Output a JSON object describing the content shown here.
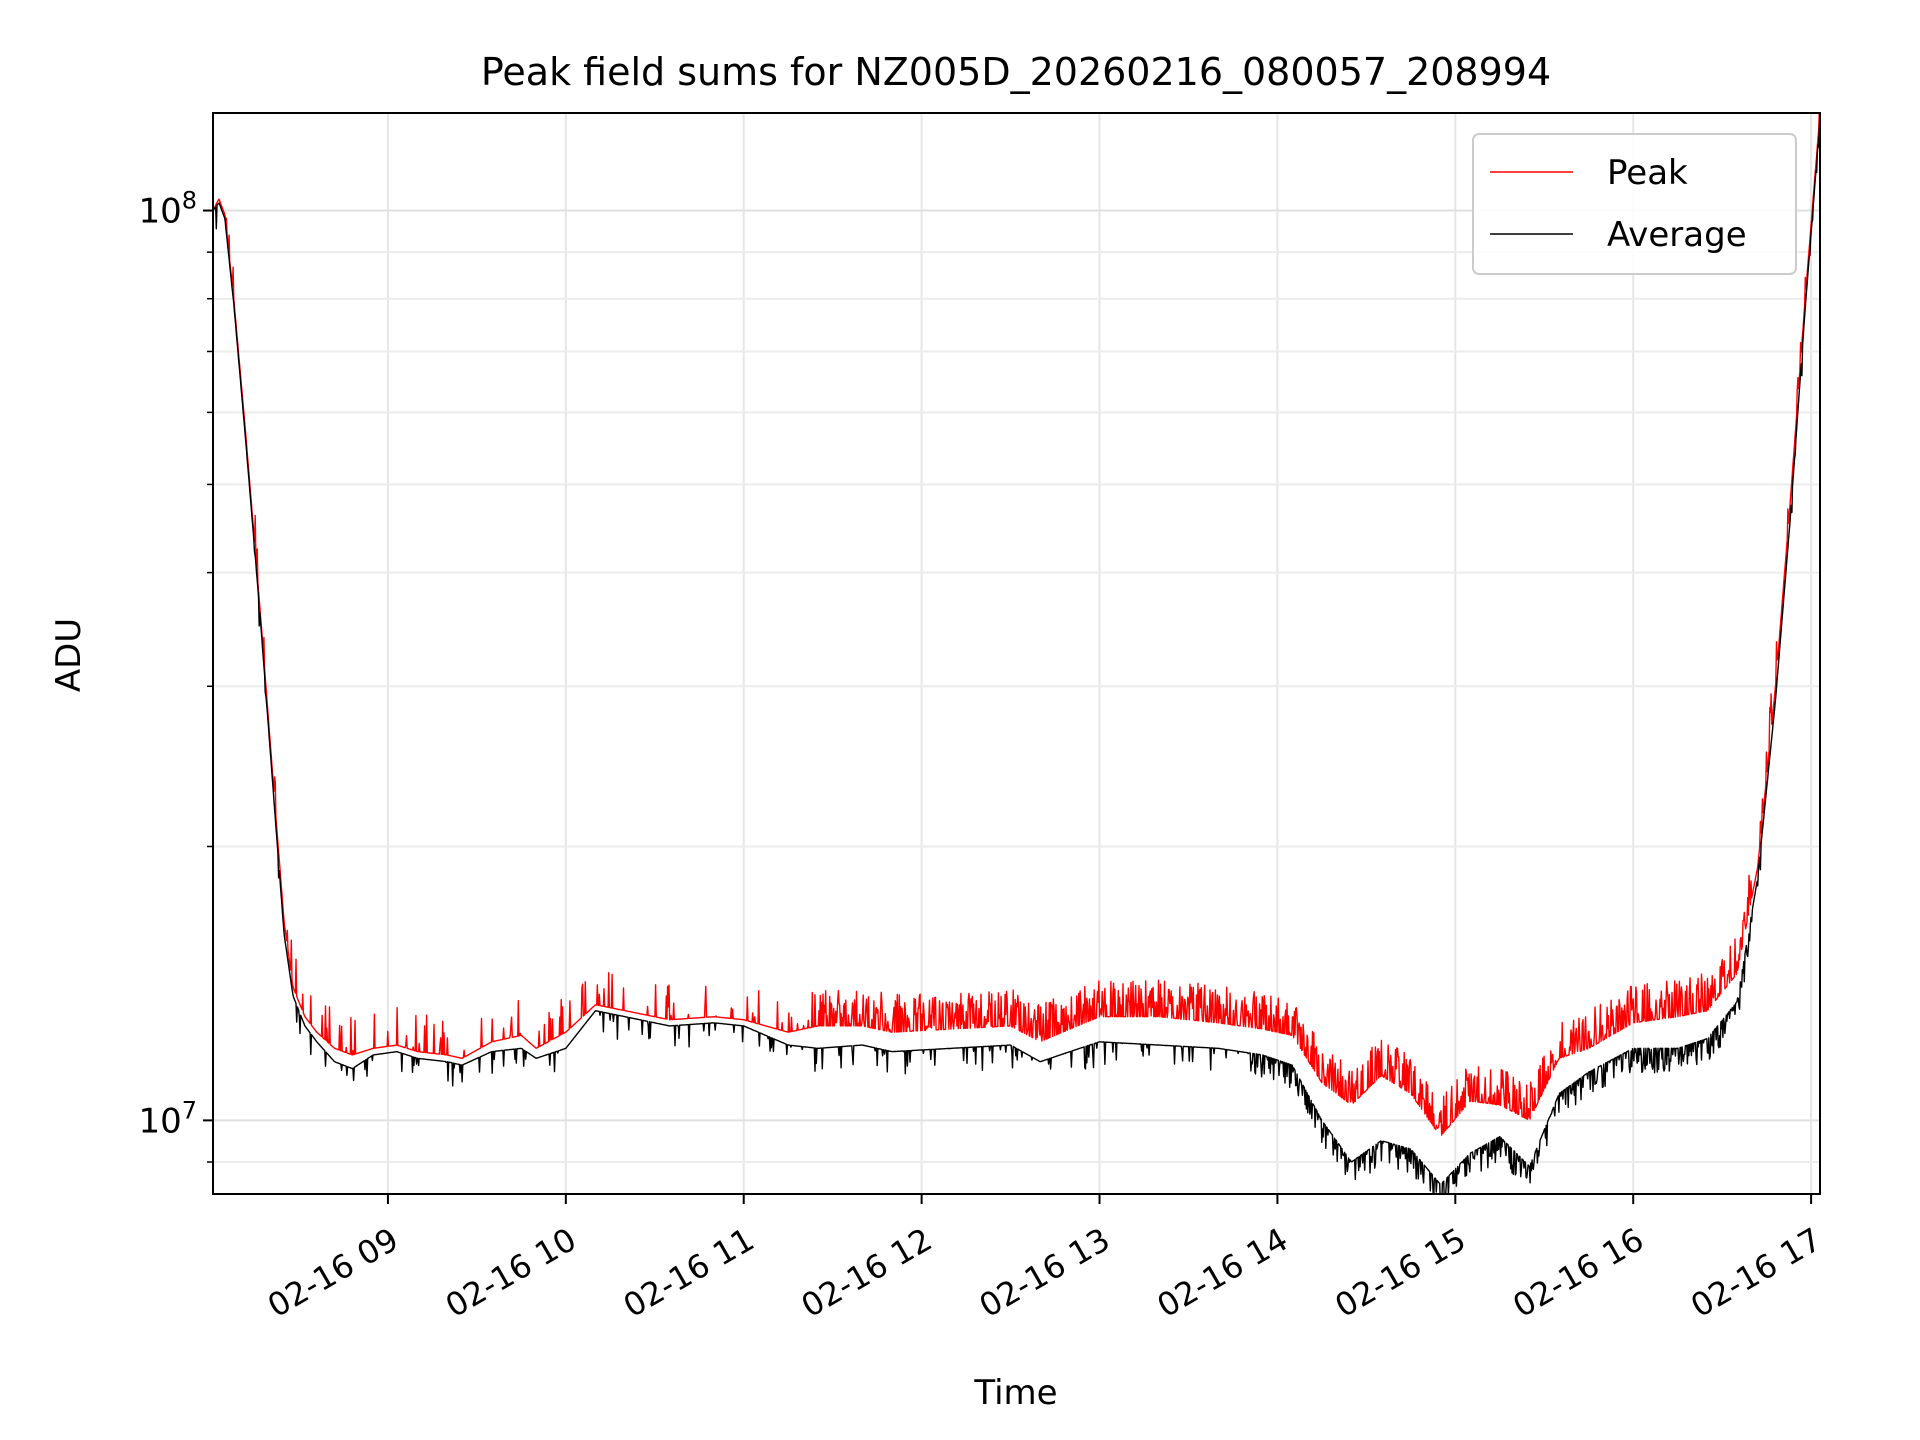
{
  "chart_data": {
    "type": "line",
    "title": "Peak field sums for NZ005D_20260216_080057_208994",
    "xlabel": "Time",
    "ylabel": "ADU",
    "x_ticks": [
      "02-16 09",
      "02-16 10",
      "02-16 11",
      "02-16 12",
      "02-16 13",
      "02-16 14",
      "02-16 15",
      "02-16 16",
      "02-16 17"
    ],
    "y_ticks": [
      {
        "value": 10000000,
        "base": "10",
        "exp": "7"
      },
      {
        "value": 100000000,
        "base": "10",
        "exp": "8"
      }
    ],
    "xlim": [
      "2026-02-16 08:01",
      "2026-02-16 17:03"
    ],
    "ylim": [
      8300000,
      128000000
    ],
    "yscale": "log",
    "grid": true,
    "legend": {
      "placement": "top-right",
      "entries": [
        "Peak",
        "Average"
      ]
    },
    "series": [
      {
        "name": "Peak",
        "color": "#ff0000",
        "x": [
          "2026-02-16 08:01",
          "2026-02-16 08:03",
          "2026-02-16 08:05",
          "2026-02-16 08:08",
          "2026-02-16 08:12",
          "2026-02-16 08:17",
          "2026-02-16 08:22",
          "2026-02-16 08:25",
          "2026-02-16 08:28",
          "2026-02-16 08:32",
          "2026-02-16 08:36",
          "2026-02-16 08:42",
          "2026-02-16 08:48",
          "2026-02-16 08:55",
          "2026-02-16 09:03",
          "2026-02-16 09:10",
          "2026-02-16 09:20",
          "2026-02-16 09:25",
          "2026-02-16 09:35",
          "2026-02-16 09:45",
          "2026-02-16 09:50",
          "2026-02-16 10:00",
          "2026-02-16 10:10",
          "2026-02-16 10:20",
          "2026-02-16 10:35",
          "2026-02-16 10:50",
          "2026-02-16 11:00",
          "2026-02-16 11:15",
          "2026-02-16 11:25",
          "2026-02-16 11:40",
          "2026-02-16 11:50",
          "2026-02-16 12:10",
          "2026-02-16 12:30",
          "2026-02-16 12:40",
          "2026-02-16 12:50",
          "2026-02-16 13:00",
          "2026-02-16 13:20",
          "2026-02-16 13:40",
          "2026-02-16 13:55",
          "2026-02-16 14:05",
          "2026-02-16 14:15",
          "2026-02-16 14:25",
          "2026-02-16 14:35",
          "2026-02-16 14:45",
          "2026-02-16 14:55",
          "2026-02-16 15:05",
          "2026-02-16 15:15",
          "2026-02-16 15:25",
          "2026-02-16 15:35",
          "2026-02-16 15:45",
          "2026-02-16 16:00",
          "2026-02-16 16:15",
          "2026-02-16 16:25",
          "2026-02-16 16:35",
          "2026-02-16 16:42",
          "2026-02-16 16:48",
          "2026-02-16 16:53",
          "2026-02-16 16:58",
          "2026-02-16 17:03"
        ],
        "values": [
          100000000,
          103000000,
          99000000,
          80000000,
          57000000,
          36000000,
          22000000,
          16500000,
          14000000,
          13000000,
          12500000,
          12000000,
          11800000,
          12000000,
          12100000,
          11900000,
          11800000,
          11700000,
          12200000,
          12400000,
          12000000,
          12500000,
          13400000,
          13200000,
          12900000,
          13000000,
          12900000,
          12500000,
          12700000,
          12700000,
          12500000,
          12600000,
          12700000,
          12200000,
          12600000,
          13000000,
          13000000,
          12800000,
          12600000,
          12400000,
          11000000,
          10400000,
          11200000,
          10700000,
          9600000,
          10500000,
          10400000,
          10000000,
          11700000,
          12000000,
          12800000,
          13000000,
          13200000,
          14500000,
          19000000,
          30000000,
          48000000,
          80000000,
          128000000
        ]
      },
      {
        "name": "Average",
        "color": "#000000",
        "x": [
          "2026-02-16 08:01",
          "2026-02-16 08:03",
          "2026-02-16 08:05",
          "2026-02-16 08:08",
          "2026-02-16 08:12",
          "2026-02-16 08:17",
          "2026-02-16 08:22",
          "2026-02-16 08:25",
          "2026-02-16 08:28",
          "2026-02-16 08:32",
          "2026-02-16 08:36",
          "2026-02-16 08:42",
          "2026-02-16 08:48",
          "2026-02-16 08:55",
          "2026-02-16 09:03",
          "2026-02-16 09:10",
          "2026-02-16 09:20",
          "2026-02-16 09:25",
          "2026-02-16 09:35",
          "2026-02-16 09:45",
          "2026-02-16 09:50",
          "2026-02-16 10:00",
          "2026-02-16 10:10",
          "2026-02-16 10:20",
          "2026-02-16 10:35",
          "2026-02-16 10:50",
          "2026-02-16 11:00",
          "2026-02-16 11:15",
          "2026-02-16 11:25",
          "2026-02-16 11:40",
          "2026-02-16 11:50",
          "2026-02-16 12:10",
          "2026-02-16 12:30",
          "2026-02-16 12:40",
          "2026-02-16 12:50",
          "2026-02-16 13:00",
          "2026-02-16 13:20",
          "2026-02-16 13:40",
          "2026-02-16 13:55",
          "2026-02-16 14:05",
          "2026-02-16 14:15",
          "2026-02-16 14:25",
          "2026-02-16 14:35",
          "2026-02-16 14:45",
          "2026-02-16 14:55",
          "2026-02-16 15:05",
          "2026-02-16 15:15",
          "2026-02-16 15:25",
          "2026-02-16 15:35",
          "2026-02-16 15:45",
          "2026-02-16 16:00",
          "2026-02-16 16:15",
          "2026-02-16 16:25",
          "2026-02-16 16:35",
          "2026-02-16 16:42",
          "2026-02-16 16:48",
          "2026-02-16 16:53",
          "2026-02-16 16:58",
          "2026-02-16 17:03"
        ],
        "values": [
          100000000,
          102000000,
          98000000,
          79000000,
          56000000,
          35500000,
          21500000,
          16000000,
          13700000,
          12700000,
          12200000,
          11600000,
          11400000,
          11800000,
          11900000,
          11700000,
          11600000,
          11500000,
          11900000,
          12000000,
          11700000,
          12000000,
          13200000,
          13000000,
          12700000,
          12800000,
          12700000,
          12100000,
          12000000,
          12100000,
          11900000,
          12000000,
          12100000,
          11600000,
          11900000,
          12200000,
          12100000,
          12000000,
          11800000,
          11500000,
          10000000,
          9000000,
          9500000,
          9300000,
          8500000,
          9200000,
          9600000,
          8900000,
          10700000,
          11300000,
          12000000,
          12000000,
          12300000,
          13500000,
          18500000,
          29000000,
          46000000,
          78000000,
          126000000
        ]
      }
    ]
  }
}
